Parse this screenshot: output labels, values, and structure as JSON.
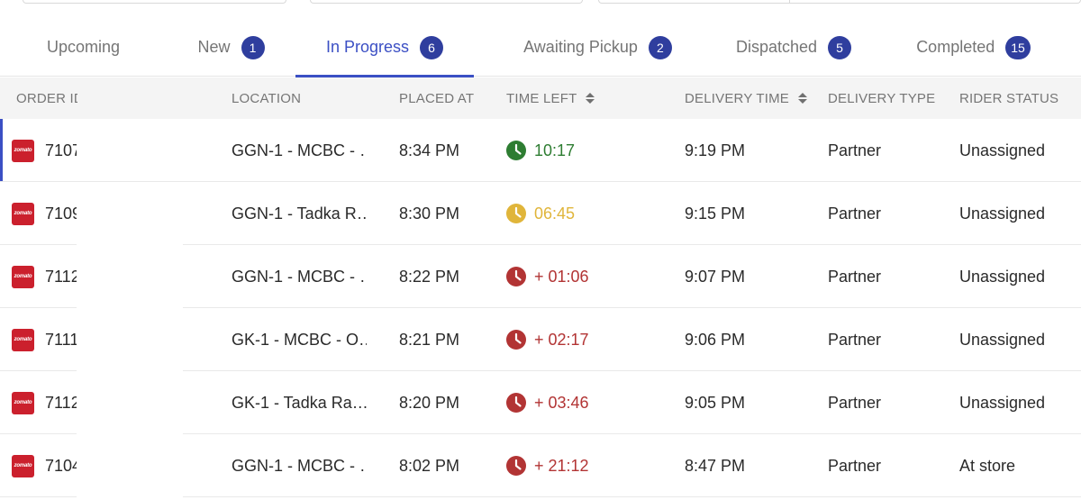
{
  "tabs": [
    {
      "label": "Upcoming",
      "count": ""
    },
    {
      "label": "New",
      "count": "1"
    },
    {
      "label": "In Progress",
      "count": "6"
    },
    {
      "label": "Awaiting Pickup",
      "count": "2"
    },
    {
      "label": "Dispatched",
      "count": "5"
    },
    {
      "label": "Completed",
      "count": "15"
    }
  ],
  "active_tab": "In Progress",
  "columns": {
    "order_id": "ORDER ID",
    "location": "LOCATION",
    "placed_at": "PLACED AT",
    "time_left": "TIME LEFT",
    "delivery_time": "DELIVERY TIME",
    "delivery_type": "DELIVERY TYPE",
    "rider_status": "RIDER STATUS"
  },
  "brand": {
    "logo_text": "zomato",
    "logo_color": "#cb202d",
    "accent": "#3b4fc4",
    "badge_color": "#2f3e9e"
  },
  "status_colors": {
    "ok": "#2e7d32",
    "warn": "#e0b53a",
    "late": "#b23434"
  },
  "rows": [
    {
      "order_id": "7107",
      "location": "GGN-1 - MCBC - …",
      "placed_at": "8:34 PM",
      "time_left": "10:17",
      "time_status": "ok",
      "delivery_time": "9:19 PM",
      "delivery_type": "Partner",
      "rider_status": "Unassigned"
    },
    {
      "order_id": "7109",
      "location": "GGN-1 - Tadka R…",
      "placed_at": "8:30 PM",
      "time_left": "06:45",
      "time_status": "warn",
      "delivery_time": "9:15 PM",
      "delivery_type": "Partner",
      "rider_status": "Unassigned"
    },
    {
      "order_id": "7112",
      "location": "GGN-1 - MCBC - …",
      "placed_at": "8:22 PM",
      "time_left": "+ 01:06",
      "time_status": "late",
      "delivery_time": "9:07 PM",
      "delivery_type": "Partner",
      "rider_status": "Unassigned"
    },
    {
      "order_id": "7111",
      "location": "GK-1 - MCBC - O…",
      "placed_at": "8:21 PM",
      "time_left": "+ 02:17",
      "time_status": "late",
      "delivery_time": "9:06 PM",
      "delivery_type": "Partner",
      "rider_status": "Unassigned"
    },
    {
      "order_id": "7112",
      "location": "GK-1 - Tadka Ra…",
      "placed_at": "8:20 PM",
      "time_left": "+ 03:46",
      "time_status": "late",
      "delivery_time": "9:05 PM",
      "delivery_type": "Partner",
      "rider_status": "Unassigned"
    },
    {
      "order_id": "7104",
      "location": "GGN-1 - MCBC - …",
      "placed_at": "8:02 PM",
      "time_left": "+ 21:12",
      "time_status": "late",
      "delivery_time": "8:47 PM",
      "delivery_type": "Partner",
      "rider_status": "At store"
    }
  ]
}
